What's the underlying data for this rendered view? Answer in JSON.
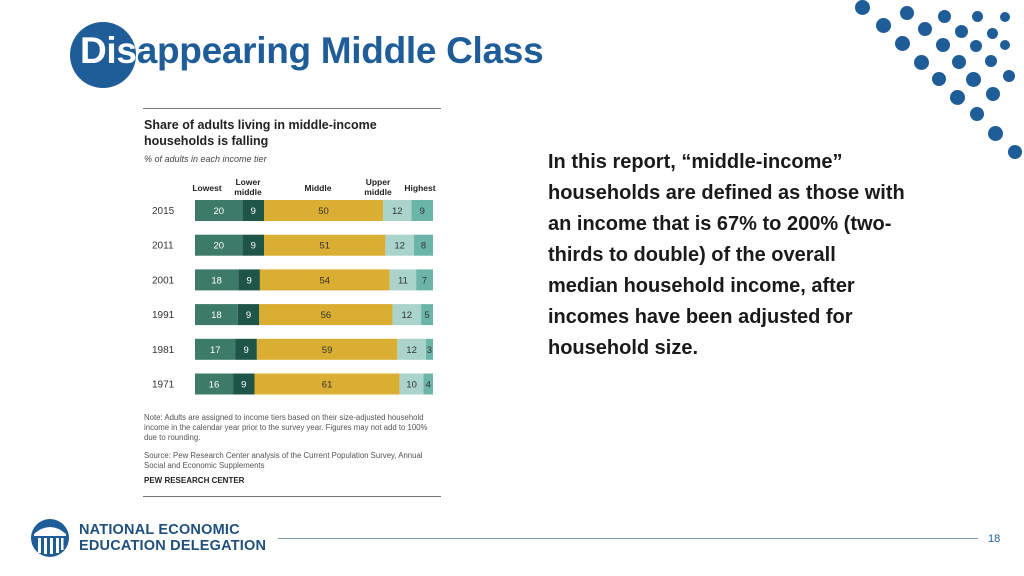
{
  "slide": {
    "title_highlight": "Dis",
    "title_rest": "appearing Middle Class",
    "description": "In this report, “middle-income” households are defined as those with an income that is 67% to 200% (two-thirds to double) of the overall median household income, after incomes have been adjusted for household size.",
    "logo_line1": "NATIONAL ECONOMIC",
    "logo_line2": "EDUCATION DELEGATION",
    "page_number": "18"
  },
  "chart_data": {
    "type": "bar",
    "orientation": "horizontal-stacked-100",
    "title": "Share of adults living in middle-income households is falling",
    "subtitle": "% of adults in each income tier",
    "categories": [
      "2015",
      "2011",
      "2001",
      "1991",
      "1981",
      "1971"
    ],
    "series": [
      {
        "name": "Lowest",
        "values": [
          20,
          20,
          18,
          18,
          17,
          16
        ],
        "color": "#3d7a6a"
      },
      {
        "name": "Lower middle",
        "values": [
          9,
          9,
          9,
          9,
          9,
          9
        ],
        "color": "#1f5448"
      },
      {
        "name": "Middle",
        "values": [
          50,
          51,
          54,
          56,
          59,
          61
        ],
        "color": "#d9ae32"
      },
      {
        "name": "Upper middle",
        "values": [
          12,
          12,
          11,
          12,
          12,
          10
        ],
        "color": "#a9d3cb"
      },
      {
        "name": "Highest",
        "values": [
          9,
          8,
          7,
          5,
          3,
          4
        ],
        "color": "#6bb5a8"
      }
    ],
    "legend_position": "top",
    "legend_labels": [
      "Lowest",
      "Lower middle",
      "Middle",
      "Upper middle",
      "Highest"
    ],
    "note": "Note: Adults are assigned to income tiers based on their size-adjusted household income in the calendar year prior to the survey year. Figures may not add to 100% due to rounding.",
    "source": "Source: Pew Research Center analysis of the Current Population Survey, Annual Social and Economic Supplements",
    "credit": "PEW RESEARCH CENTER"
  }
}
